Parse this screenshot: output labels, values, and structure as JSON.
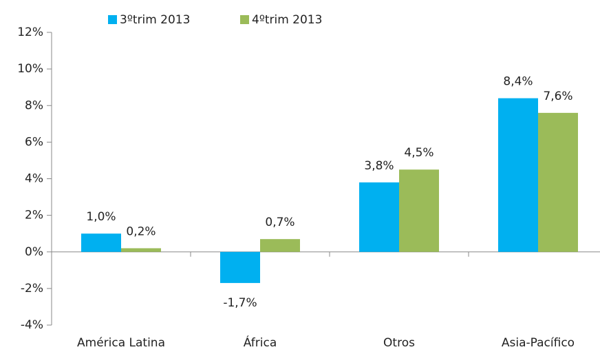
{
  "chart_data": {
    "type": "bar",
    "categories": [
      "América Latina",
      "África",
      "Otros",
      "Asia-Pacífico"
    ],
    "series": [
      {
        "name": "3ºtrim 2013",
        "color": "#00b0f0",
        "values": [
          1.0,
          -1.7,
          3.8,
          8.4
        ],
        "value_labels": [
          "1,0%",
          "-1,7%",
          "3,8%",
          "8,4%"
        ]
      },
      {
        "name": "4ºtrim 2013",
        "color": "#9bbb59",
        "values": [
          0.2,
          0.7,
          4.5,
          7.6
        ],
        "value_labels": [
          "0,2%",
          "0,7%",
          "4,5%",
          "7,6%"
        ]
      }
    ],
    "ylim": [
      -4,
      12
    ],
    "yticks": [
      {
        "value": -4,
        "label": "-4%"
      },
      {
        "value": -2,
        "label": "-2%"
      },
      {
        "value": 0,
        "label": "0%"
      },
      {
        "value": 2,
        "label": "2%"
      },
      {
        "value": 4,
        "label": "4%"
      },
      {
        "value": 6,
        "label": "6%"
      },
      {
        "value": 8,
        "label": "8%"
      },
      {
        "value": 10,
        "label": "10%"
      },
      {
        "value": 12,
        "label": "12%"
      }
    ],
    "legend": "top"
  }
}
